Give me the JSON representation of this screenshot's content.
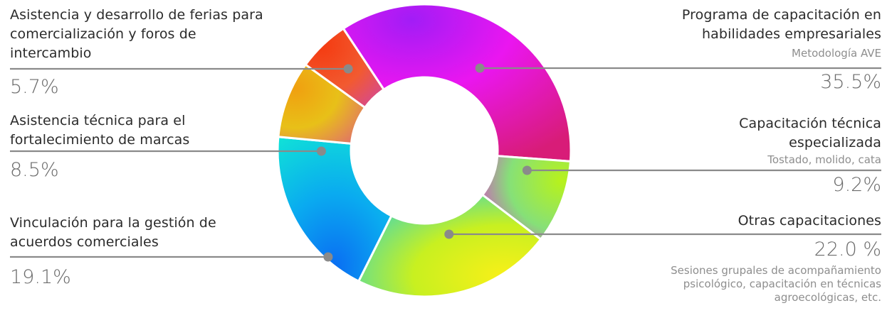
{
  "chart_data": {
    "type": "donut",
    "slices": [
      {
        "label": "Programa de capacitación en habilidades empresariales",
        "sublabel": "Metodología AVE",
        "value": 35.5,
        "display": "35.5%"
      },
      {
        "label": "Capacitación técnica especializada",
        "sublabel": "Tostado, molido, cata",
        "value": 9.2,
        "display": "9.2%"
      },
      {
        "label": "Otras capacitaciones",
        "sublabel": "Sesiones grupales de acompañamiento psicológico, capacitación en técnicas agroecológicas, etc.",
        "value": 22.0,
        "display": "22.0 %"
      },
      {
        "label": "Vinculación para la gestión de acuerdos comerciales",
        "sublabel": "",
        "value": 19.1,
        "display": "19.1%"
      },
      {
        "label": "Asistencia técnica para el fortalecimiento de marcas",
        "sublabel": "",
        "value": 8.5,
        "display": "8.5%"
      },
      {
        "label": "Asistencia y desarrollo de ferias para comercialización y foros de intercambio",
        "sublabel": "",
        "value": 5.7,
        "display": "5.7%"
      }
    ],
    "colors": [
      "#d21cd6",
      "#b6f01a",
      "#f4ee16",
      "#0aa0ec",
      "#e6b80c",
      "#f44a16"
    ],
    "leader_color": "#8a8a8a"
  }
}
